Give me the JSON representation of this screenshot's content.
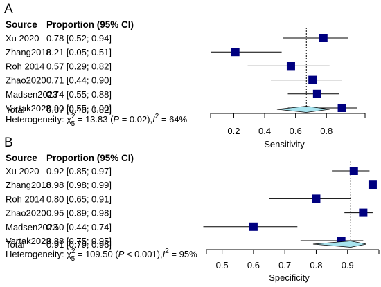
{
  "chart_data": [
    {
      "type": "forest",
      "panel_label": "A",
      "column_headers": [
        "Source",
        "Proportion (95% CI)"
      ],
      "studies": [
        {
          "name": "Xu 2020",
          "ci_text": "0.78 [0.52; 0.94]",
          "estimate": 0.78,
          "lower": 0.52,
          "upper": 0.94
        },
        {
          "name": "Zhang2018",
          "ci_text": "0.21 [0.05; 0.51]",
          "estimate": 0.21,
          "lower": 0.05,
          "upper": 0.51
        },
        {
          "name": "Roh 2014",
          "ci_text": "0.57 [0.29; 0.82]",
          "estimate": 0.57,
          "lower": 0.29,
          "upper": 0.82
        },
        {
          "name": "Zhao2020",
          "ci_text": "0.71 [0.44; 0.90]",
          "estimate": 0.71,
          "lower": 0.44,
          "upper": 0.9
        },
        {
          "name": "Madsen2023",
          "ci_text": "0.74 [0.55; 0.88]",
          "estimate": 0.74,
          "lower": 0.55,
          "upper": 0.88
        },
        {
          "name": "Vartak2023",
          "ci_text": "0.90 [0.55; 1.00]",
          "estimate": 0.9,
          "lower": 0.55,
          "upper": 1.0
        }
      ],
      "total": {
        "name": "Total",
        "ci_text": "0.67 [0.48; 0.82]",
        "estimate": 0.67,
        "lower": 0.48,
        "upper": 0.82
      },
      "heterogeneity": {
        "prefix": "Heterogeneity: ",
        "chi_symbol": "χ",
        "chi_sup": "2",
        "chi_sub": "5",
        "stat": " = 13.83 (",
        "p_symbol": "P",
        "p_text": " = 0.02),",
        "i_symbol": "I",
        "i_sup": "2",
        "i_text": " = 64%"
      },
      "xlabel": "Sensitivity",
      "xticks": [
        0.2,
        0.4,
        0.6,
        0.8
      ],
      "xtick_labels": [
        "0.2",
        "0.4",
        "0.6",
        "0.8"
      ],
      "xlim": [
        0.05,
        1.05
      ],
      "marker_color": "#000080",
      "diamond_color": "#A8E4EF"
    },
    {
      "type": "forest",
      "panel_label": "B",
      "column_headers": [
        "Source",
        "Proportion (95% CI)"
      ],
      "studies": [
        {
          "name": "Xu 2020",
          "ci_text": "0.92 [0.85; 0.97]",
          "estimate": 0.92,
          "lower": 0.85,
          "upper": 0.97
        },
        {
          "name": "Zhang2018",
          "ci_text": "0.98 [0.98; 0.99]",
          "estimate": 0.98,
          "lower": 0.98,
          "upper": 0.99
        },
        {
          "name": "Roh 2014",
          "ci_text": "0.80 [0.65; 0.91]",
          "estimate": 0.8,
          "lower": 0.65,
          "upper": 0.91
        },
        {
          "name": "Zhao2020",
          "ci_text": "0.95 [0.89; 0.98]",
          "estimate": 0.95,
          "lower": 0.89,
          "upper": 0.98
        },
        {
          "name": "Madsen2023",
          "ci_text": "0.60 [0.44; 0.74]",
          "estimate": 0.6,
          "lower": 0.44,
          "upper": 0.74
        },
        {
          "name": "Vartak2023",
          "ci_text": "0.88 [0.75; 0.95]",
          "estimate": 0.88,
          "lower": 0.75,
          "upper": 0.95
        }
      ],
      "total": {
        "name": "Total",
        "ci_text": "0.91 [0.79; 0.96]",
        "estimate": 0.91,
        "lower": 0.79,
        "upper": 0.96
      },
      "heterogeneity": {
        "prefix": "Heterogeneity: ",
        "chi_symbol": "χ",
        "chi_sup": "2",
        "chi_sub": "5",
        "stat": " = 109.50 (",
        "p_symbol": "P",
        "p_text": " < 0.001),",
        "i_symbol": "I",
        "i_sup": "2",
        "i_text": " = 95%"
      },
      "xlabel": "Specificity",
      "xticks": [
        0.5,
        0.6,
        0.7,
        0.8,
        0.9
      ],
      "xtick_labels": [
        "0.5",
        "0.6",
        "0.7",
        "0.8",
        "0.9"
      ],
      "xlim": [
        0.45,
        1.0
      ],
      "marker_color": "#000080",
      "diamond_color": "#A8E4EF"
    }
  ]
}
